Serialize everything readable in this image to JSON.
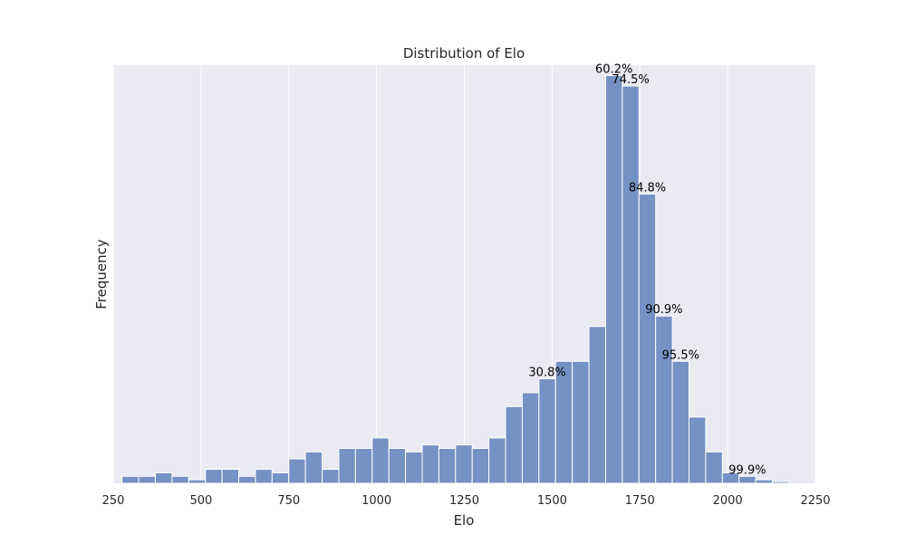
{
  "chart_data": {
    "type": "bar",
    "title": "Distribution of Elo",
    "xlabel": "Elo",
    "ylabel": "Frequency",
    "xlim": [
      250,
      2250
    ],
    "ylim": [
      0,
      120
    ],
    "xticks": [
      250,
      500,
      750,
      1000,
      1250,
      1500,
      1750,
      2000,
      2250
    ],
    "grid": "vertical",
    "bin_edges": [
      275,
      322.5,
      370,
      417.5,
      465,
      512.5,
      560,
      607.5,
      655,
      702.5,
      750,
      797.5,
      845,
      892.5,
      940,
      987.5,
      1035,
      1082.5,
      1130,
      1177.5,
      1225,
      1272.5,
      1320,
      1367.5,
      1415,
      1462.5,
      1510,
      1557.5,
      1605,
      1652.5,
      1700,
      1747.5,
      1795,
      1842.5,
      1890,
      1937.5,
      1985,
      2032.5,
      2080,
      2127.5,
      2175
    ],
    "values": [
      2,
      2,
      3,
      2,
      1,
      4,
      4,
      2,
      4,
      3,
      7,
      9,
      4,
      10,
      10,
      13,
      10,
      9,
      11,
      10,
      11,
      10,
      13,
      22,
      26,
      30,
      35,
      35,
      45,
      117,
      114,
      83,
      48,
      35,
      19,
      9,
      3,
      2,
      1,
      0.5
    ],
    "annotations": [
      {
        "bin": 25,
        "label": "30.8%"
      },
      {
        "bin": 29,
        "label": "60.2%"
      },
      {
        "bin": 30,
        "label": "74.5%"
      },
      {
        "bin": 31,
        "label": "84.8%"
      },
      {
        "bin": 32,
        "label": "90.9%"
      },
      {
        "bin": 33,
        "label": "95.5%"
      },
      {
        "bin": 37,
        "label": "99.9%"
      }
    ],
    "colors": {
      "background": "#eaeaf2",
      "bar": "#7592c4",
      "bar_edge": "#ffffff",
      "grid": "#ffffff"
    }
  }
}
